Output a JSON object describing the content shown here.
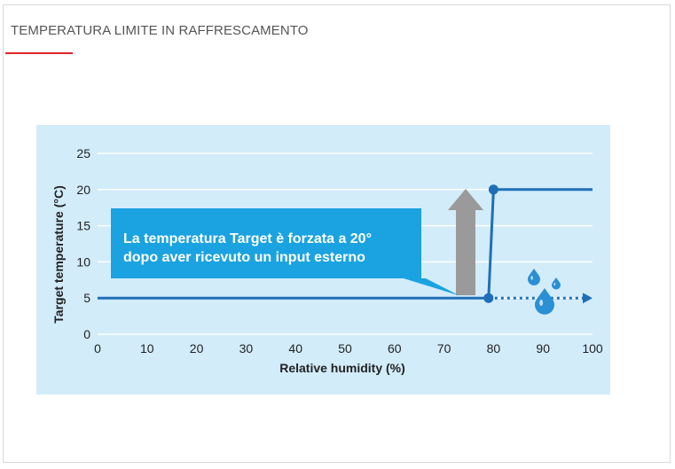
{
  "header": {
    "title": "TEMPERATURA LIMITE IN RAFFRESCAMENTO",
    "accent_color": "#e2232a"
  },
  "colors": {
    "panel": "#d2ecfa",
    "line": "#1f6fb8",
    "dotted": "#1f6fb8",
    "callout": "#1aa3e0",
    "arrow": "#9a9a9a",
    "drop": "#2a8fd4",
    "grid": "#ffffff"
  },
  "chart_data": {
    "type": "line",
    "xlabel": "Relative humidity (%)",
    "ylabel": "Target temperature (°C)",
    "xlim": [
      0,
      100
    ],
    "ylim": [
      0,
      25
    ],
    "x_ticks": [
      0,
      10,
      20,
      30,
      40,
      50,
      60,
      70,
      80,
      90,
      100
    ],
    "y_ticks": [
      0,
      5,
      10,
      15,
      20,
      25
    ],
    "grid": "horizontal",
    "series": [
      {
        "points": [
          [
            0,
            5
          ],
          [
            79,
            5
          ],
          [
            80,
            20
          ],
          [
            100,
            20
          ]
        ],
        "style": "solid"
      },
      {
        "points": [
          [
            79,
            5
          ],
          [
            100,
            5
          ]
        ],
        "style": "dotted-arrow"
      }
    ],
    "markers": [
      [
        79,
        5
      ],
      [
        80,
        20
      ]
    ],
    "annotation": {
      "lines": [
        "La temperatura Target è forzata a 20°",
        "dopo aver ricevuto un input esterno"
      ]
    },
    "icons": [
      "up-arrow-icon",
      "water-drop-icon"
    ]
  }
}
